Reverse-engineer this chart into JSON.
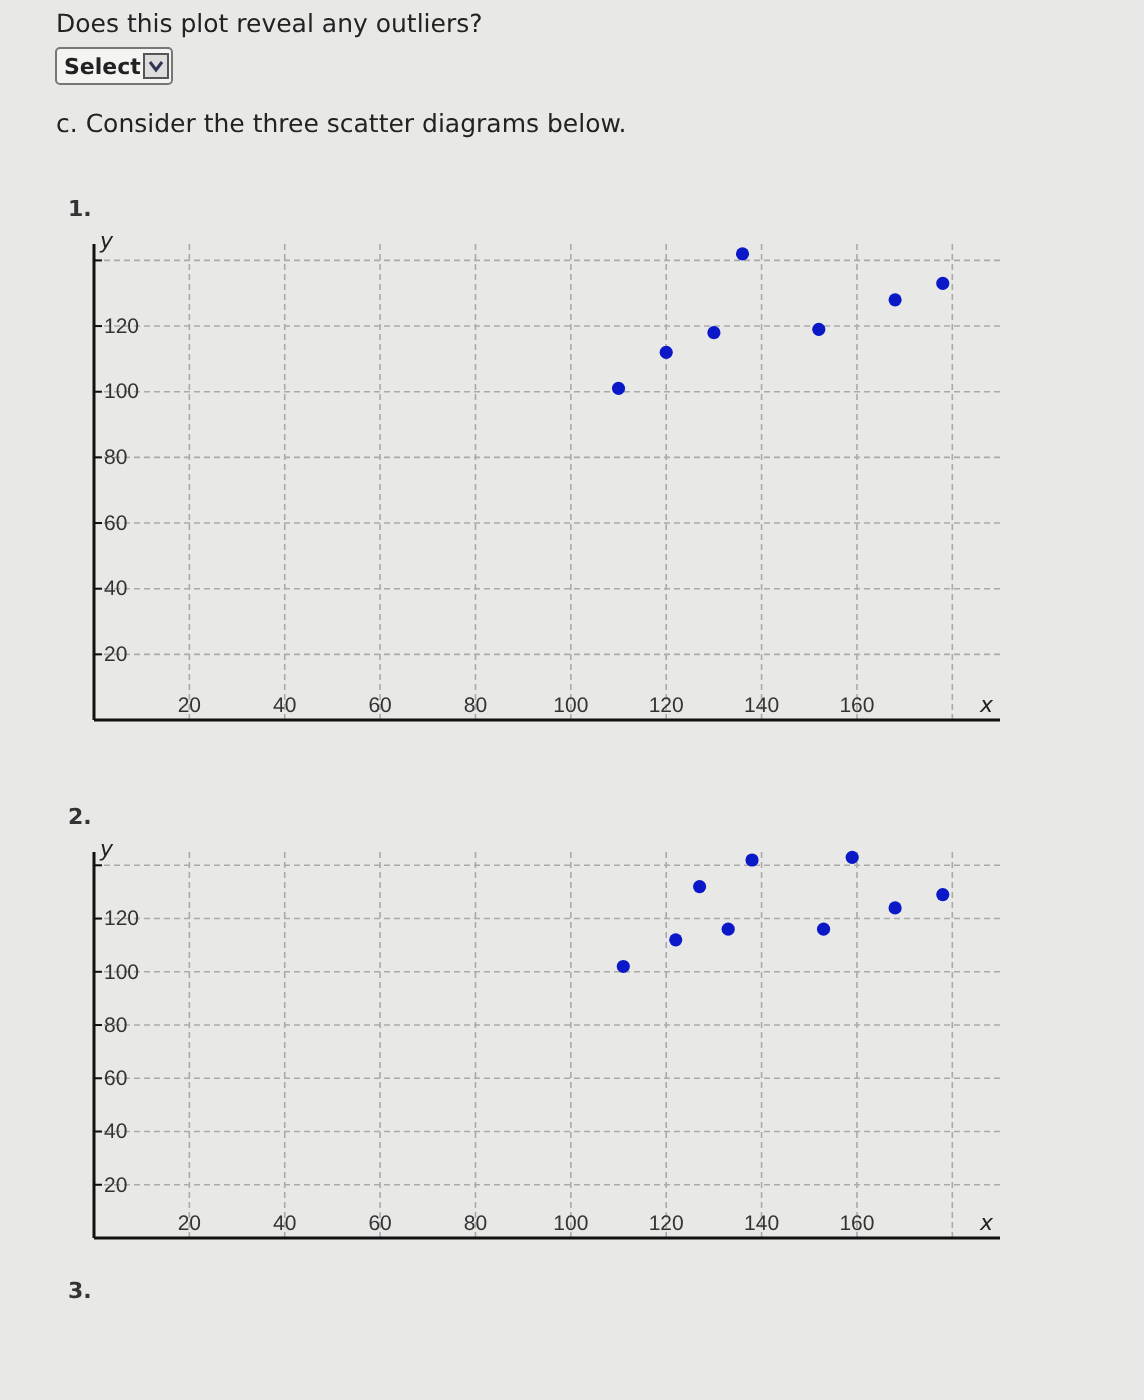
{
  "chart_data": [
    {
      "type": "scatter",
      "title": "1.",
      "annotations": [
        "Does this plot reveal any outliers?",
        "Select",
        "c. Consider the three scatter diagrams below."
      ],
      "xlabel": "x",
      "ylabel": "y",
      "xlim": [
        0,
        190
      ],
      "ylim": [
        0,
        145
      ],
      "xticks": [
        20,
        40,
        60,
        80,
        100,
        120,
        140,
        160,
        {
          "value": 180,
          "label": null
        }
      ],
      "yticks": [
        20,
        40,
        60,
        80,
        100,
        120,
        {
          "value": 140,
          "label": null
        }
      ],
      "grid": true,
      "marker": "circle",
      "series": [
        {
          "color": "#0a18c8",
          "x": [
            110,
            120,
            130,
            136,
            152,
            168,
            178
          ],
          "values": [
            101,
            112,
            118,
            142,
            119,
            128,
            133
          ]
        }
      ]
    },
    {
      "type": "scatter",
      "title": "2.",
      "annotations": [
        "3."
      ],
      "xlabel": "x",
      "ylabel": "y",
      "xlim": [
        0,
        190
      ],
      "ylim": [
        0,
        145
      ],
      "xticks": [
        20,
        40,
        60,
        80,
        100,
        120,
        140,
        160,
        {
          "value": 180,
          "label": null
        }
      ],
      "yticks": [
        20,
        40,
        60,
        80,
        100,
        120,
        {
          "value": 140,
          "label": null
        }
      ],
      "grid": true,
      "marker": "circle",
      "series": [
        {
          "color": "#0a18c8",
          "x": [
            111,
            122,
            127,
            133,
            138,
            153,
            159,
            168,
            178
          ],
          "values": [
            102,
            112,
            132,
            116,
            142,
            116,
            143,
            124,
            129
          ]
        }
      ]
    }
  ]
}
